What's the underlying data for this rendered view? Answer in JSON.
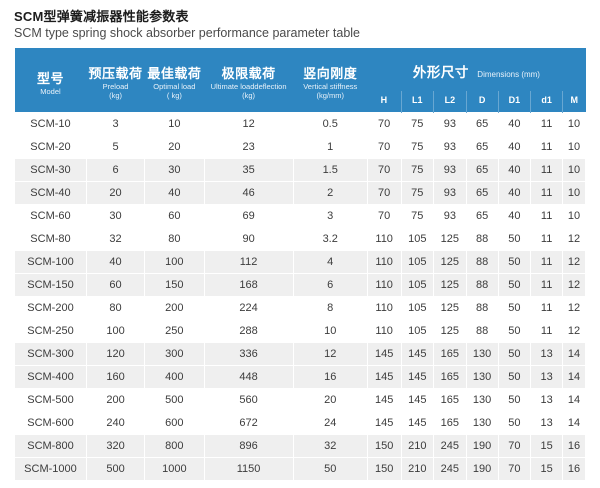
{
  "page": {
    "title_cn": "SCM型弹簧减振器性能参数表",
    "title_en": "SCM type spring shock absorber performance parameter table"
  },
  "colors": {
    "header_bg": "#2e86c1",
    "stripe_bg": "#efefef",
    "header_text": "#ffffff",
    "body_text": "#3c3c3c"
  },
  "table": {
    "headers": {
      "model": {
        "cn": "型号",
        "en": "Model"
      },
      "preload": {
        "cn": "预压载荷",
        "en": "Preload",
        "unit": "(kg)"
      },
      "optimal": {
        "cn": "最佳载荷",
        "en": "Optimal load",
        "unit": "( kg)"
      },
      "ultimate": {
        "cn": "极限载荷",
        "en": "Ultimate loaddeflection",
        "unit": "(kg)"
      },
      "stiffness": {
        "cn": "竖向刚度",
        "en": "Vertical stiffness",
        "unit": "(kg/mm)"
      },
      "dimensions": {
        "cn": "外形尺寸",
        "en": "Dimensions (mm)"
      },
      "dim_cols": [
        "H",
        "L1",
        "L2",
        "D",
        "D1",
        "d1",
        "M"
      ]
    },
    "rows": [
      {
        "model": "SCM-10",
        "values": [
          "3",
          "10",
          "12",
          "0.5",
          "70",
          "75",
          "93",
          "65",
          "40",
          "11",
          "10"
        ]
      },
      {
        "model": "SCM-20",
        "values": [
          "5",
          "20",
          "23",
          "1",
          "70",
          "75",
          "93",
          "65",
          "40",
          "11",
          "10"
        ]
      },
      {
        "model": "SCM-30",
        "values": [
          "6",
          "30",
          "35",
          "1.5",
          "70",
          "75",
          "93",
          "65",
          "40",
          "11",
          "10"
        ]
      },
      {
        "model": "SCM-40",
        "values": [
          "20",
          "40",
          "46",
          "2",
          "70",
          "75",
          "93",
          "65",
          "40",
          "11",
          "10"
        ]
      },
      {
        "model": "SCM-60",
        "values": [
          "30",
          "60",
          "69",
          "3",
          "70",
          "75",
          "93",
          "65",
          "40",
          "11",
          "10"
        ]
      },
      {
        "model": "SCM-80",
        "values": [
          "32",
          "80",
          "90",
          "3.2",
          "110",
          "105",
          "125",
          "88",
          "50",
          "11",
          "12"
        ]
      },
      {
        "model": "SCM-100",
        "values": [
          "40",
          "100",
          "112",
          "4",
          "110",
          "105",
          "125",
          "88",
          "50",
          "11",
          "12"
        ]
      },
      {
        "model": "SCM-150",
        "values": [
          "60",
          "150",
          "168",
          "6",
          "110",
          "105",
          "125",
          "88",
          "50",
          "11",
          "12"
        ]
      },
      {
        "model": "SCM-200",
        "values": [
          "80",
          "200",
          "224",
          "8",
          "110",
          "105",
          "125",
          "88",
          "50",
          "11",
          "12"
        ]
      },
      {
        "model": "SCM-250",
        "values": [
          "100",
          "250",
          "288",
          "10",
          "110",
          "105",
          "125",
          "88",
          "50",
          "11",
          "12"
        ]
      },
      {
        "model": "SCM-300",
        "values": [
          "120",
          "300",
          "336",
          "12",
          "145",
          "145",
          "165",
          "130",
          "50",
          "13",
          "14"
        ]
      },
      {
        "model": "SCM-400",
        "values": [
          "160",
          "400",
          "448",
          "16",
          "145",
          "145",
          "165",
          "130",
          "50",
          "13",
          "14"
        ]
      },
      {
        "model": "SCM-500",
        "values": [
          "200",
          "500",
          "560",
          "20",
          "145",
          "145",
          "165",
          "130",
          "50",
          "13",
          "14"
        ]
      },
      {
        "model": "SCM-600",
        "values": [
          "240",
          "600",
          "672",
          "24",
          "145",
          "145",
          "165",
          "130",
          "50",
          "13",
          "14"
        ]
      },
      {
        "model": "SCM-800",
        "values": [
          "320",
          "800",
          "896",
          "32",
          "150",
          "210",
          "245",
          "190",
          "70",
          "15",
          "16"
        ]
      },
      {
        "model": "SCM-1000",
        "values": [
          "500",
          "1000",
          "1150",
          "50",
          "150",
          "210",
          "245",
          "190",
          "70",
          "15",
          "16"
        ]
      }
    ]
  }
}
